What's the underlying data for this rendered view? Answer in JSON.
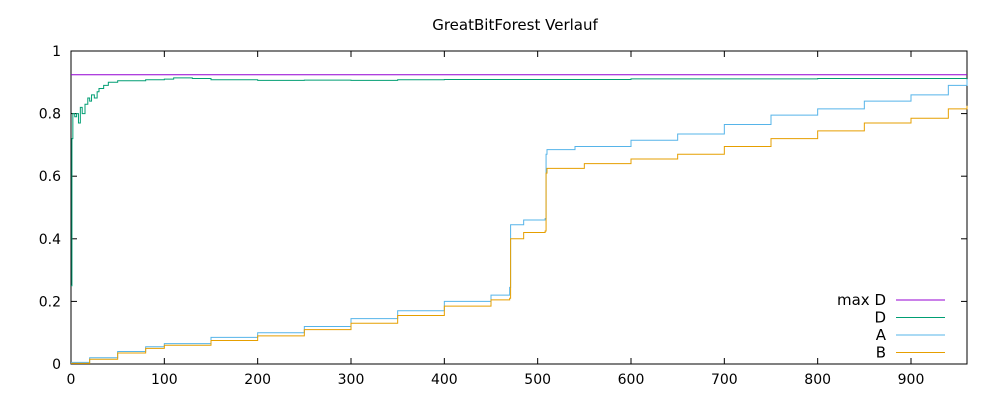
{
  "chart_data": {
    "type": "line",
    "title": "GreatBitForest Verlauf",
    "xlabel": "",
    "ylabel": "",
    "xlim": [
      0,
      960
    ],
    "ylim": [
      0,
      1
    ],
    "xticks": [
      0,
      100,
      200,
      300,
      400,
      500,
      600,
      700,
      800,
      900
    ],
    "yticks": [
      0,
      0.2,
      0.4,
      0.6,
      0.8,
      1
    ],
    "ytick_labels": [
      "0",
      "0.2",
      "0.4",
      "0.6",
      "0.8",
      "1"
    ],
    "grid": false,
    "legend_position": "bottom-right",
    "series": [
      {
        "name": "max D",
        "color": "#9400d3",
        "style": "line",
        "points": [
          [
            0,
            0.924
          ],
          [
            960,
            0.924
          ]
        ]
      },
      {
        "name": "D",
        "color": "#009e73",
        "style": "step",
        "points": [
          [
            0,
            0.25
          ],
          [
            1,
            0.72
          ],
          [
            2,
            0.8
          ],
          [
            4,
            0.79
          ],
          [
            6,
            0.8
          ],
          [
            8,
            0.77
          ],
          [
            10,
            0.82
          ],
          [
            12,
            0.8
          ],
          [
            15,
            0.83
          ],
          [
            18,
            0.85
          ],
          [
            20,
            0.84
          ],
          [
            22,
            0.86
          ],
          [
            25,
            0.85
          ],
          [
            28,
            0.87
          ],
          [
            30,
            0.88
          ],
          [
            35,
            0.89
          ],
          [
            40,
            0.9
          ],
          [
            50,
            0.905
          ],
          [
            60,
            0.905
          ],
          [
            80,
            0.908
          ],
          [
            100,
            0.91
          ],
          [
            110,
            0.914
          ],
          [
            130,
            0.912
          ],
          [
            150,
            0.908
          ],
          [
            200,
            0.906
          ],
          [
            250,
            0.907
          ],
          [
            300,
            0.906
          ],
          [
            350,
            0.908
          ],
          [
            400,
            0.909
          ],
          [
            500,
            0.909
          ],
          [
            600,
            0.911
          ],
          [
            700,
            0.911
          ],
          [
            800,
            0.912
          ],
          [
            900,
            0.912
          ],
          [
            960,
            0.912
          ]
        ]
      },
      {
        "name": "A",
        "color": "#56b4e9",
        "style": "step",
        "points": [
          [
            0,
            0.005
          ],
          [
            20,
            0.02
          ],
          [
            50,
            0.04
          ],
          [
            80,
            0.055
          ],
          [
            100,
            0.065
          ],
          [
            150,
            0.085
          ],
          [
            200,
            0.1
          ],
          [
            250,
            0.12
          ],
          [
            300,
            0.145
          ],
          [
            350,
            0.17
          ],
          [
            400,
            0.2
          ],
          [
            450,
            0.22
          ],
          [
            470,
            0.245
          ],
          [
            471,
            0.445
          ],
          [
            485,
            0.46
          ],
          [
            508,
            0.465
          ],
          [
            509,
            0.67
          ],
          [
            510,
            0.685
          ],
          [
            540,
            0.695
          ],
          [
            600,
            0.715
          ],
          [
            650,
            0.735
          ],
          [
            700,
            0.765
          ],
          [
            750,
            0.795
          ],
          [
            800,
            0.815
          ],
          [
            850,
            0.84
          ],
          [
            900,
            0.86
          ],
          [
            940,
            0.89
          ],
          [
            960,
            0.91
          ]
        ]
      },
      {
        "name": "B",
        "color": "#e69f00",
        "style": "step",
        "points": [
          [
            0,
            0.002
          ],
          [
            20,
            0.015
          ],
          [
            50,
            0.035
          ],
          [
            80,
            0.05
          ],
          [
            100,
            0.06
          ],
          [
            150,
            0.075
          ],
          [
            200,
            0.09
          ],
          [
            250,
            0.11
          ],
          [
            300,
            0.13
          ],
          [
            350,
            0.155
          ],
          [
            400,
            0.185
          ],
          [
            450,
            0.205
          ],
          [
            470,
            0.21
          ],
          [
            471,
            0.4
          ],
          [
            485,
            0.42
          ],
          [
            508,
            0.425
          ],
          [
            509,
            0.61
          ],
          [
            510,
            0.625
          ],
          [
            550,
            0.64
          ],
          [
            600,
            0.655
          ],
          [
            650,
            0.67
          ],
          [
            700,
            0.695
          ],
          [
            750,
            0.72
          ],
          [
            800,
            0.745
          ],
          [
            850,
            0.77
          ],
          [
            900,
            0.785
          ],
          [
            940,
            0.815
          ],
          [
            960,
            0.825
          ]
        ]
      }
    ]
  }
}
